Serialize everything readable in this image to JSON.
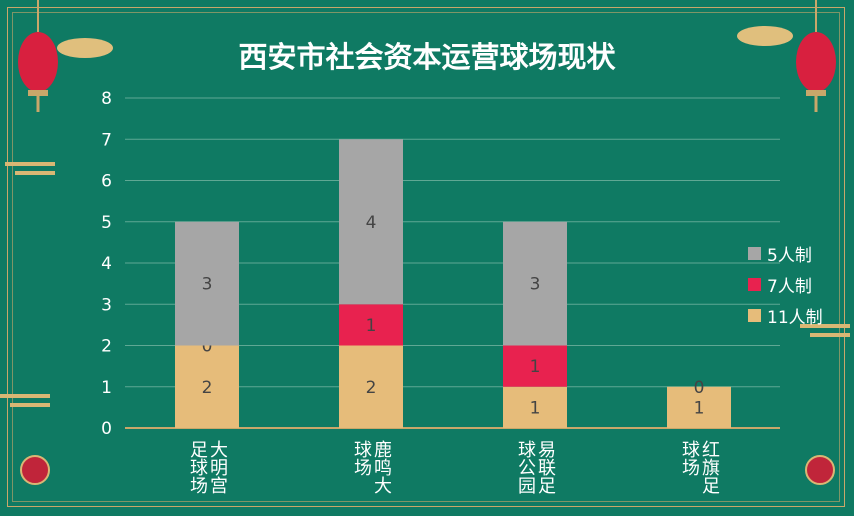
{
  "chart_data": {
    "type": "bar",
    "stacked": true,
    "title": "西安市社会资本运营球场现状",
    "categories": [
      "大明宫足球场",
      "鹿鸣大球场",
      "易联足球公园",
      "红旗足球场"
    ],
    "series": [
      {
        "name": "11人制",
        "values": [
          2,
          2,
          1,
          1
        ],
        "color": "#e6bc7a"
      },
      {
        "name": "7人制",
        "values": [
          0,
          1,
          1,
          0
        ],
        "color": "#e8224f"
      },
      {
        "name": "5人制",
        "values": [
          3,
          4,
          3,
          null
        ],
        "color": "#a6a6a6"
      }
    ],
    "yticks": [
      "0",
      "1",
      "2",
      "3",
      "4",
      "5",
      "6",
      "7",
      "8"
    ],
    "ylim": [
      0,
      8
    ],
    "grid": true,
    "legend": "right"
  },
  "colors": {
    "background": "#0f7a63",
    "gold": "#c9a76a"
  }
}
